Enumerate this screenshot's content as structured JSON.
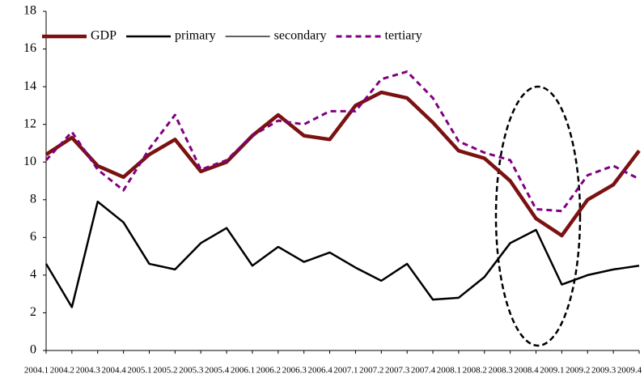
{
  "chart_data": {
    "type": "line",
    "categories": [
      "2004.1",
      "2004.2",
      "2004.3",
      "2004.4",
      "2005.1",
      "2005.2",
      "2005.3",
      "2005.4",
      "2006.1",
      "2006.2",
      "2006.3",
      "2006.4",
      "2007.1",
      "2007.2",
      "2007.3",
      "2007.4",
      "2008.1",
      "2008.2",
      "2008.3",
      "2008.4",
      "2009.1",
      "2009.2",
      "2009.3",
      "2009.4"
    ],
    "series": [
      {
        "name": "GDP",
        "color": "#7b1111",
        "values": [
          10.4,
          11.3,
          9.8,
          9.2,
          10.4,
          11.2,
          9.5,
          10.0,
          11.4,
          12.5,
          11.4,
          11.2,
          13.0,
          13.7,
          13.4,
          12.1,
          10.6,
          10.2,
          9.0,
          7.0,
          6.1,
          8.0,
          8.8,
          10.6
        ]
      },
      {
        "name": "primary",
        "color": "#000000",
        "values": [
          4.6,
          2.3,
          7.9,
          6.8,
          4.6,
          4.3,
          5.7,
          6.5,
          4.5,
          5.5,
          4.7,
          5.2,
          4.4,
          3.7,
          4.6,
          2.7,
          2.8,
          3.9,
          5.7,
          6.4,
          3.5,
          4.0,
          4.3,
          4.5
        ]
      },
      {
        "name": "secondary",
        "color": "#000000",
        "values": [
          null,
          null,
          null,
          null,
          null,
          null,
          null,
          null,
          null,
          null,
          null,
          null,
          null,
          null,
          null,
          null,
          null,
          null,
          null,
          null,
          null,
          null,
          null,
          null
        ]
      },
      {
        "name": "tertiary",
        "color": "#800080",
        "linestyle": "dashed",
        "values": [
          10.1,
          11.6,
          9.6,
          8.5,
          10.7,
          12.5,
          9.6,
          10.1,
          11.4,
          12.2,
          12.0,
          12.7,
          12.7,
          14.4,
          14.8,
          13.4,
          11.1,
          10.5,
          10.1,
          7.5,
          7.4,
          9.3,
          9.8,
          9.1
        ]
      }
    ],
    "ylim": [
      0,
      18
    ],
    "yticks": [
      0,
      2,
      4,
      6,
      8,
      10,
      12,
      14,
      16,
      18
    ],
    "grid": false,
    "legend": "top-left"
  }
}
